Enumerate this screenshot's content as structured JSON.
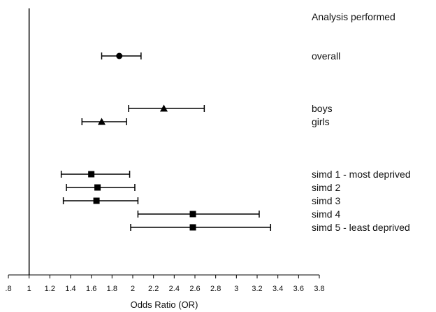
{
  "chart_data": {
    "type": "forest",
    "title": "",
    "xlabel": "Odds Ratio (OR)",
    "legend_title": "Analysis performed",
    "xlim": [
      0.8,
      3.8
    ],
    "xticks": [
      ".8",
      "1",
      "1.2",
      "1.4",
      "1.6",
      "1.8",
      "2",
      "2.2",
      "2.4",
      "2.6",
      "2.8",
      "3",
      "3.2",
      "3.4",
      "3.6",
      "3.8"
    ],
    "reference_line": 1,
    "rows": [
      {
        "label": "overall",
        "or": 1.87,
        "ci_low": 1.7,
        "ci_high": 2.08,
        "marker": "circle",
        "group": 1
      },
      {
        "label": "boys",
        "or": 2.3,
        "ci_low": 1.96,
        "ci_high": 2.69,
        "marker": "triangle",
        "group": 2
      },
      {
        "label": "girls",
        "or": 1.7,
        "ci_low": 1.51,
        "ci_high": 1.94,
        "marker": "triangle",
        "group": 2
      },
      {
        "label": "simd 1 - most deprived",
        "or": 1.6,
        "ci_low": 1.31,
        "ci_high": 1.97,
        "marker": "square",
        "group": 3
      },
      {
        "label": "simd 2",
        "or": 1.66,
        "ci_low": 1.36,
        "ci_high": 2.02,
        "marker": "square",
        "group": 3
      },
      {
        "label": "simd 3",
        "or": 1.65,
        "ci_low": 1.33,
        "ci_high": 2.05,
        "marker": "square",
        "group": 3
      },
      {
        "label": "simd 4",
        "or": 2.58,
        "ci_low": 2.05,
        "ci_high": 3.22,
        "marker": "square",
        "group": 3
      },
      {
        "label": "simd 5 - least deprived",
        "or": 2.58,
        "ci_low": 1.98,
        "ci_high": 3.33,
        "marker": "square",
        "group": 3
      }
    ]
  }
}
